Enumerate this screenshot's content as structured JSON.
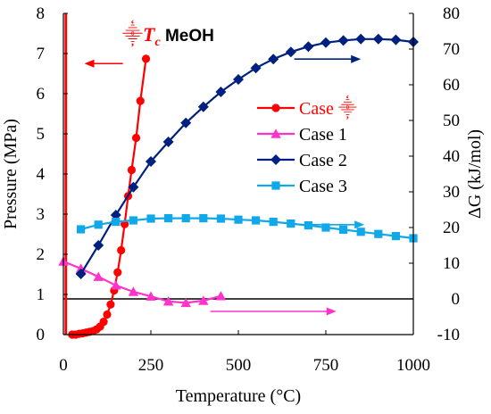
{
  "chart_data": {
    "type": "line",
    "xlabel": "Temperature (°C)",
    "ylabel_left": "Pressure (MPa)",
    "ylabel_right": "ΔG (kJ/mol)",
    "xlim": [
      0,
      1000
    ],
    "ylim_left": [
      0,
      8
    ],
    "ylim_right": [
      -10,
      80
    ],
    "x_ticks": [
      "0",
      "250",
      "500",
      "750",
      "1000"
    ],
    "y_left_ticks": [
      "0",
      "1",
      "2",
      "3",
      "4",
      "5",
      "6",
      "7",
      "8"
    ],
    "y_right_ticks": [
      "-10",
      "0",
      "10",
      "20",
      "30",
      "40",
      "50",
      "60",
      "70",
      "80"
    ],
    "grid": false,
    "legend_position": "center-right",
    "annotation": {
      "symbol": "⸎",
      "tc": "T",
      "tc_sub": "c",
      "rest": " MeOH"
    },
    "zero_line": {
      "axis": "right",
      "y": 0,
      "x_range": [
        0,
        1000
      ]
    },
    "vertical_line": {
      "axis": "left",
      "x": 7,
      "y_range": [
        0,
        8
      ]
    },
    "series": [
      {
        "name": "Case ⸎",
        "axis": "left",
        "color": "#ff0000",
        "marker": "circle",
        "points": [
          [
            25,
            0.0
          ],
          [
            35,
            0.0
          ],
          [
            45,
            0.02
          ],
          [
            55,
            0.03
          ],
          [
            65,
            0.05
          ],
          [
            75,
            0.07
          ],
          [
            85,
            0.09
          ],
          [
            95,
            0.13
          ],
          [
            105,
            0.2
          ],
          [
            115,
            0.32
          ],
          [
            125,
            0.5
          ],
          [
            135,
            0.75
          ],
          [
            145,
            1.1
          ],
          [
            155,
            1.55
          ],
          [
            165,
            2.1
          ],
          [
            175,
            2.75
          ],
          [
            185,
            3.45
          ],
          [
            195,
            4.1
          ],
          [
            208,
            4.9
          ],
          [
            220,
            5.82
          ],
          [
            236,
            6.87
          ]
        ]
      },
      {
        "name": "Case 1",
        "axis": "right",
        "color": "#ff33cc",
        "marker": "triangle",
        "points": [
          [
            0,
            10.5
          ],
          [
            50,
            8.5
          ],
          [
            100,
            6.2
          ],
          [
            150,
            3.8
          ],
          [
            200,
            2.0
          ],
          [
            250,
            0.7
          ],
          [
            300,
            -0.7
          ],
          [
            350,
            -1.1
          ],
          [
            400,
            -0.5
          ],
          [
            450,
            0.8
          ]
        ]
      },
      {
        "name": "Case 2",
        "axis": "right",
        "color": "#002080",
        "marker": "diamond",
        "points": [
          [
            50,
            7.0
          ],
          [
            100,
            15.0
          ],
          [
            150,
            23.5
          ],
          [
            200,
            31.3
          ],
          [
            250,
            38.5
          ],
          [
            300,
            44.0
          ],
          [
            350,
            49.3
          ],
          [
            400,
            53.8
          ],
          [
            450,
            58.0
          ],
          [
            500,
            61.5
          ],
          [
            550,
            64.7
          ],
          [
            600,
            67.2
          ],
          [
            650,
            69.2
          ],
          [
            700,
            70.7
          ],
          [
            750,
            71.8
          ],
          [
            800,
            72.4
          ],
          [
            850,
            72.8
          ],
          [
            900,
            72.8
          ],
          [
            950,
            72.6
          ],
          [
            1000,
            72.0
          ]
        ]
      },
      {
        "name": "Case 3",
        "axis": "right",
        "color": "#10a8e8",
        "marker": "square",
        "points": [
          [
            50,
            19.5
          ],
          [
            100,
            20.8
          ],
          [
            150,
            21.6
          ],
          [
            200,
            22.0
          ],
          [
            250,
            22.5
          ],
          [
            300,
            22.6
          ],
          [
            350,
            22.6
          ],
          [
            400,
            22.6
          ],
          [
            450,
            22.5
          ],
          [
            500,
            22.2
          ],
          [
            550,
            22.0
          ],
          [
            600,
            21.6
          ],
          [
            650,
            21.1
          ],
          [
            700,
            20.6
          ],
          [
            750,
            20.0
          ],
          [
            800,
            19.4
          ],
          [
            850,
            18.8
          ],
          [
            900,
            18.2
          ],
          [
            950,
            17.6
          ],
          [
            1000,
            17.0
          ]
        ]
      }
    ],
    "arrows": [
      {
        "series": "Case ⸎",
        "axis": "left",
        "from": [
          170,
          6.75
        ],
        "to": [
          60,
          6.75
        ]
      },
      {
        "series": "Case 2",
        "axis": "right",
        "from": [
          660,
          67.2
        ],
        "to": [
          850,
          67.2
        ]
      },
      {
        "series": "Case 3",
        "axis": "right",
        "from": [
          710,
          20.8
        ],
        "to": [
          860,
          20.8
        ]
      },
      {
        "series": "Case 1",
        "axis": "right",
        "from": [
          420,
          -3.5
        ],
        "to": [
          780,
          -3.5
        ]
      }
    ]
  }
}
